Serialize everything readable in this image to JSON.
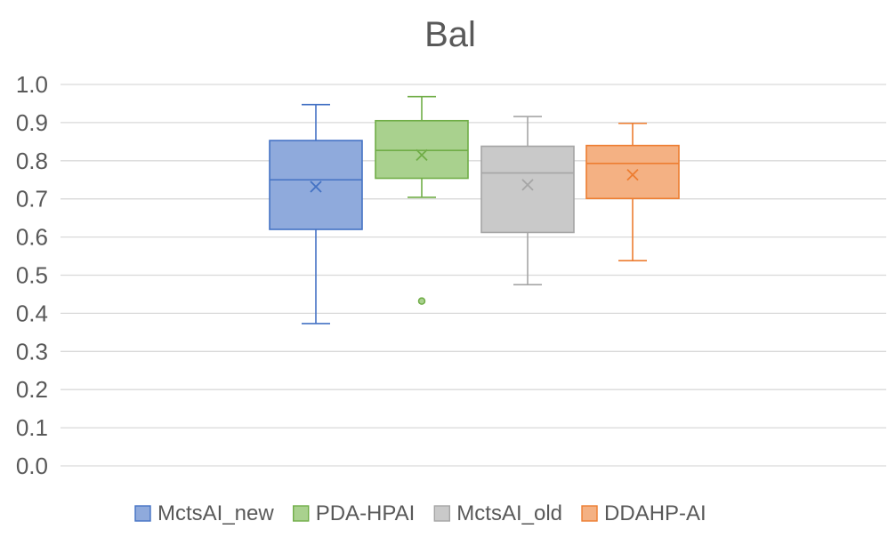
{
  "chart_data": {
    "type": "box",
    "title": "Bal",
    "xlabel": "",
    "ylabel": "",
    "ylim": [
      0.0,
      1.0
    ],
    "yticks": [
      "0.0",
      "0.1",
      "0.2",
      "0.3",
      "0.4",
      "0.5",
      "0.6",
      "0.7",
      "0.8",
      "0.9",
      "1.0"
    ],
    "grid": true,
    "legend_position": "bottom",
    "series": [
      {
        "name": "MctsAI_new",
        "color": "#4472C4",
        "fill": "#8FAADC",
        "whisker_low": 0.373,
        "q1": 0.62,
        "median": 0.75,
        "q3": 0.853,
        "whisker_high": 0.947,
        "mean": 0.732,
        "outliers": []
      },
      {
        "name": "PDA-HPAI",
        "color": "#70AD47",
        "fill": "#A9D18E",
        "whisker_low": 0.704,
        "q1": 0.754,
        "median": 0.827,
        "q3": 0.905,
        "whisker_high": 0.968,
        "mean": 0.815,
        "outliers": [
          0.432
        ]
      },
      {
        "name": "MctsAI_old",
        "color": "#A5A5A5",
        "fill": "#C9C9C9",
        "whisker_low": 0.475,
        "q1": 0.612,
        "median": 0.768,
        "q3": 0.838,
        "whisker_high": 0.916,
        "mean": 0.737,
        "outliers": []
      },
      {
        "name": "DDAHP-AI",
        "color": "#ED7D31",
        "fill": "#F4B183",
        "whisker_low": 0.538,
        "q1": 0.701,
        "median": 0.793,
        "q3": 0.84,
        "whisker_high": 0.898,
        "mean": 0.763,
        "outliers": []
      }
    ]
  }
}
